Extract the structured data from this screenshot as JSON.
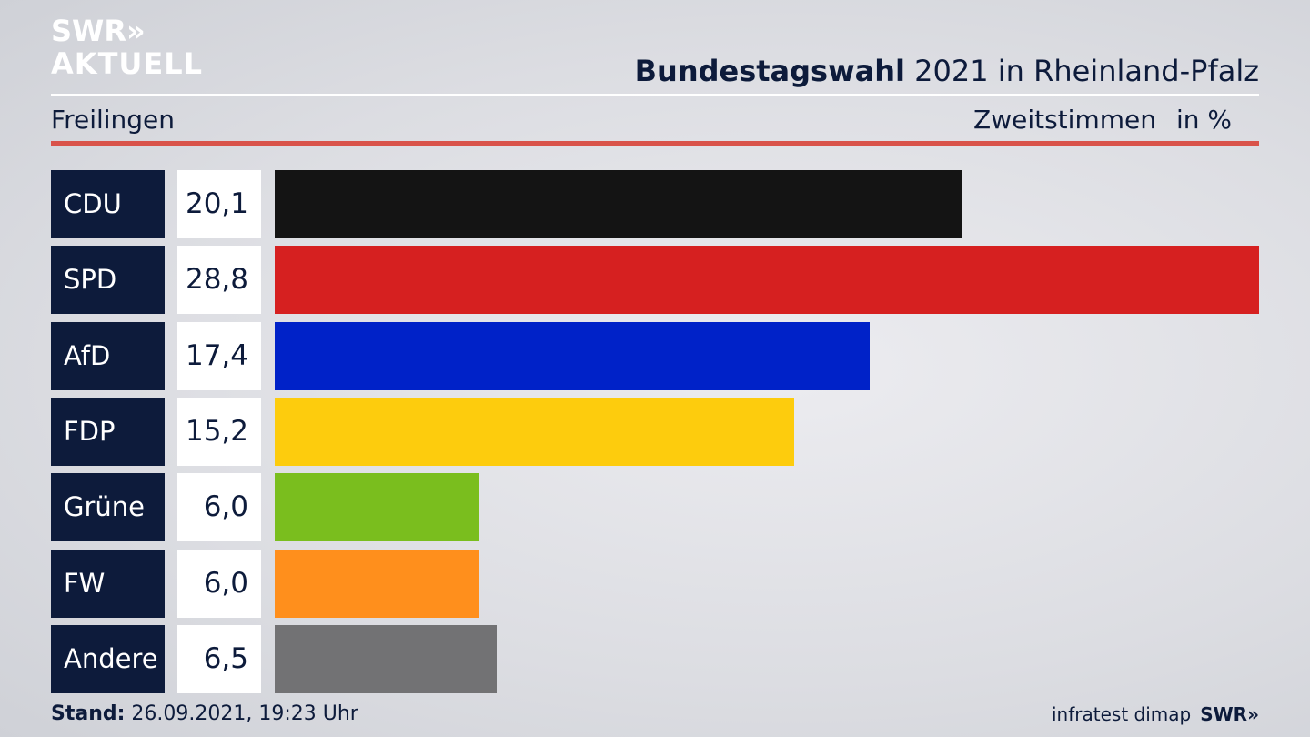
{
  "brand": {
    "line1": "SWR»",
    "line2": "AKTUELL",
    "footer_logo": "SWR»"
  },
  "header": {
    "title_bold": "Bundestagswahl",
    "title_rest": " 2021 in Rheinland-Pfalz"
  },
  "subheader": {
    "location": "Freilingen",
    "metric": "Zweitstimmen",
    "unit": "in %"
  },
  "colors": {
    "navy": "#0d1b3b",
    "accent_rule": "#d9534a"
  },
  "chart_data": {
    "type": "bar",
    "orientation": "horizontal",
    "categories": [
      "CDU",
      "SPD",
      "AfD",
      "FDP",
      "Grüne",
      "FW",
      "Andere"
    ],
    "values": [
      20.1,
      28.8,
      17.4,
      15.2,
      6.0,
      6.0,
      6.5
    ],
    "value_labels": [
      "20,1",
      "28,8",
      "17,4",
      "15,2",
      "6,0",
      "6,0",
      "6,5"
    ],
    "colors": [
      "#141414",
      "#d62020",
      "#0022c8",
      "#fdcc0d",
      "#7abe1e",
      "#ff8f1c",
      "#727274"
    ],
    "xlim": [
      0,
      28.8
    ]
  },
  "footer": {
    "stand_label": "Stand:",
    "stand_value": " 26.09.2021, 19:23 Uhr",
    "source": "infratest dimap"
  }
}
